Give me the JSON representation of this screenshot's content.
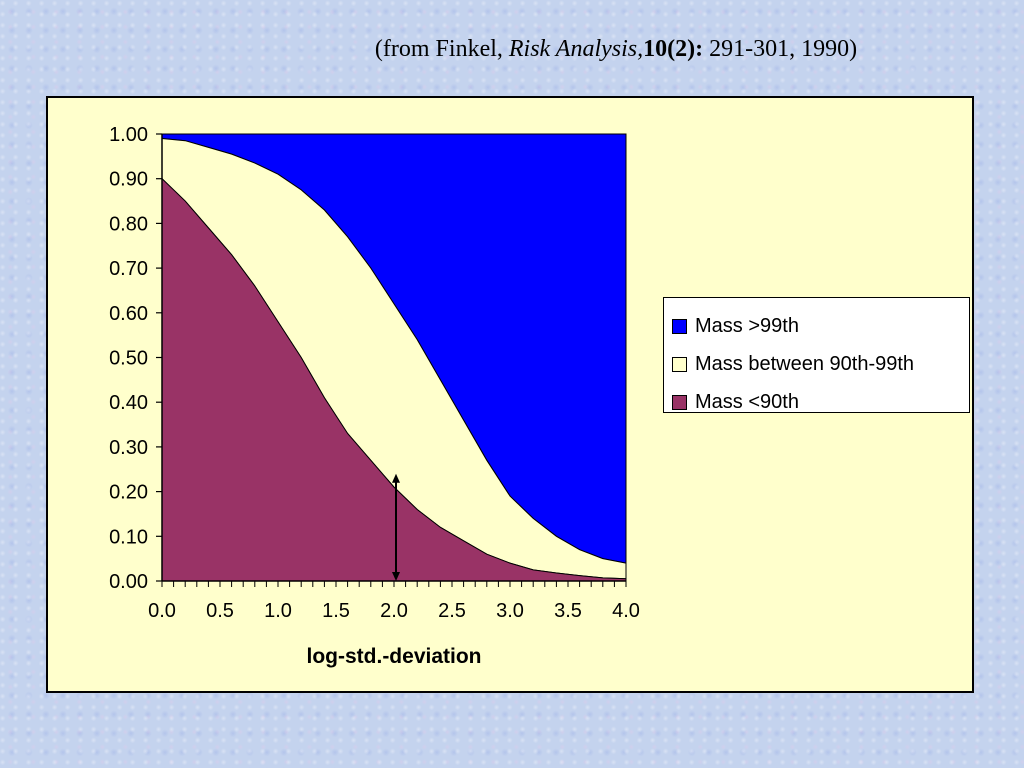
{
  "citation": {
    "prefix": "(from Finkel, ",
    "journal": "Risk Analysis,",
    "volume": "10(2):",
    "suffix": " 291-301, 1990)"
  },
  "chart_data": {
    "type": "area",
    "stacked": true,
    "xlabel": "log-std.-deviation",
    "ylabel": "",
    "xlim": [
      0,
      4
    ],
    "ylim": [
      0,
      1
    ],
    "x_ticks": [
      "0.0",
      "0.5",
      "1.0",
      "1.5",
      "2.0",
      "2.5",
      "3.0",
      "3.5",
      "4.0"
    ],
    "y_ticks": [
      "0.00",
      "0.10",
      "0.20",
      "0.30",
      "0.40",
      "0.50",
      "0.60",
      "0.70",
      "0.80",
      "0.90",
      "1.00"
    ],
    "x": [
      0.0,
      0.2,
      0.4,
      0.6,
      0.8,
      1.0,
      1.2,
      1.4,
      1.6,
      1.8,
      2.0,
      2.2,
      2.4,
      2.6,
      2.8,
      3.0,
      3.2,
      3.4,
      3.6,
      3.8,
      4.0
    ],
    "cumulative_bounds": {
      "lower_boundary": [
        0.9,
        0.85,
        0.79,
        0.73,
        0.66,
        0.58,
        0.5,
        0.41,
        0.33,
        0.27,
        0.21,
        0.16,
        0.12,
        0.09,
        0.06,
        0.04,
        0.025,
        0.018,
        0.012,
        0.007,
        0.005
      ],
      "upper_boundary": [
        0.99,
        0.985,
        0.97,
        0.955,
        0.935,
        0.91,
        0.875,
        0.83,
        0.77,
        0.7,
        0.62,
        0.54,
        0.45,
        0.36,
        0.27,
        0.19,
        0.14,
        0.1,
        0.07,
        0.05,
        0.04
      ]
    },
    "series": [
      {
        "name": "Mass >99th",
        "color": "#0000ff",
        "values": [
          0.01,
          0.015,
          0.03,
          0.045,
          0.065,
          0.09,
          0.125,
          0.17,
          0.23,
          0.3,
          0.38,
          0.46,
          0.55,
          0.64,
          0.73,
          0.81,
          0.86,
          0.9,
          0.93,
          0.95,
          0.96
        ]
      },
      {
        "name": "Mass between 90th-99th",
        "color": "#ffffcc",
        "values": [
          0.09,
          0.135,
          0.18,
          0.225,
          0.275,
          0.33,
          0.375,
          0.42,
          0.44,
          0.43,
          0.41,
          0.38,
          0.33,
          0.27,
          0.21,
          0.15,
          0.115,
          0.082,
          0.058,
          0.043,
          0.035
        ]
      },
      {
        "name": "Mass <90th",
        "color": "#993366",
        "values": [
          0.9,
          0.85,
          0.79,
          0.73,
          0.66,
          0.58,
          0.5,
          0.41,
          0.33,
          0.27,
          0.21,
          0.16,
          0.12,
          0.09,
          0.06,
          0.04,
          0.025,
          0.018,
          0.012,
          0.007,
          0.005
        ]
      }
    ],
    "annotation": {
      "type": "double-arrow",
      "x": 2.0,
      "y_from": 0.0,
      "y_to": 0.24
    },
    "legend_position": "right",
    "grid": false
  }
}
